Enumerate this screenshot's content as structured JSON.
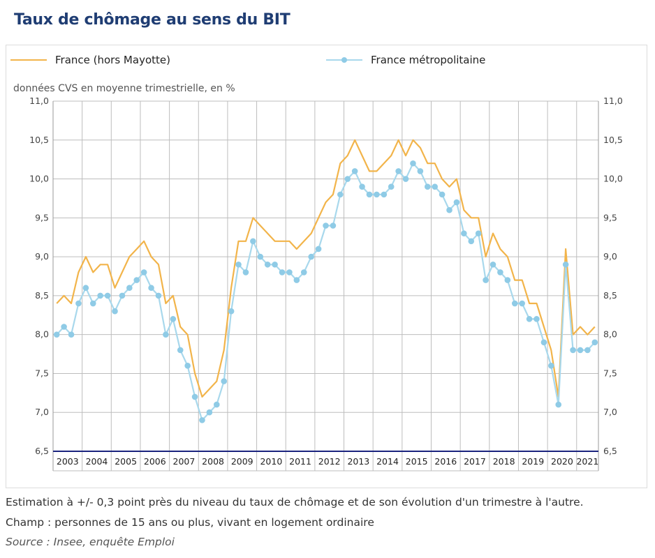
{
  "page_title": "Taux de chômage au sens du BIT",
  "colors": {
    "france": "#f2b44a",
    "metro_line": "#a8d8ec",
    "metro_point": "#8fcbe6",
    "baseline": "#1a237e",
    "grid": "#bdbdbd"
  },
  "legend": {
    "france_label": "France (hors Mayotte)",
    "metro_label": "France métropolitaine"
  },
  "units_note": "données CVS en moyenne trimestrielle, en %",
  "footnotes": {
    "estimation": "Estimation à +/- 0,3 point près du niveau du taux de chômage et de son évolution d'un trimestre à l'autre.",
    "champ": "Champ : personnes de 15 ans ou plus, vivant en logement ordinaire",
    "source": "Source : Insee, enquête Emploi"
  },
  "chart_data": {
    "type": "line",
    "title": "Taux de chômage au sens du BIT",
    "ylabel": "données CVS en moyenne trimestrielle, en %",
    "ylim": [
      6.5,
      11.0
    ],
    "yticks": [
      "6,5",
      "7,0",
      "7,5",
      "8,0",
      "8,5",
      "9,0",
      "9,5",
      "10,0",
      "10,5",
      "11,0"
    ],
    "ytick_values": [
      6.5,
      7.0,
      7.5,
      8.0,
      8.5,
      9.0,
      9.5,
      10.0,
      10.5,
      11.0
    ],
    "x_start": "2003 T1",
    "quarters_per_year": 4,
    "years": [
      "2003",
      "2004",
      "2005",
      "2006",
      "2007",
      "2008",
      "2009",
      "2010",
      "2011",
      "2012",
      "2013",
      "2014",
      "2015",
      "2016",
      "2017",
      "2018",
      "2019",
      "2020",
      "2021"
    ],
    "last_year_quarters": 3,
    "series": [
      {
        "name": "France (hors Mayotte)",
        "values": [
          8.4,
          8.5,
          8.4,
          8.8,
          9.0,
          8.8,
          8.9,
          8.9,
          8.6,
          8.8,
          9.0,
          9.1,
          9.2,
          9.0,
          8.9,
          8.4,
          8.5,
          8.1,
          8.0,
          7.5,
          7.2,
          7.3,
          7.4,
          7.8,
          8.6,
          9.2,
          9.2,
          9.5,
          9.4,
          9.3,
          9.2,
          9.2,
          9.2,
          9.1,
          9.2,
          9.3,
          9.5,
          9.7,
          9.8,
          10.2,
          10.3,
          10.5,
          10.3,
          10.1,
          10.1,
          10.2,
          10.3,
          10.5,
          10.3,
          10.5,
          10.4,
          10.2,
          10.2,
          10.0,
          9.9,
          10.0,
          9.6,
          9.5,
          9.5,
          9.0,
          9.3,
          9.1,
          9.0,
          8.7,
          8.7,
          8.4,
          8.4,
          8.1,
          7.8,
          7.2,
          9.1,
          8.0,
          8.1,
          8.0,
          8.1
        ]
      },
      {
        "name": "France métropolitaine",
        "values": [
          8.0,
          8.1,
          8.0,
          8.4,
          8.6,
          8.4,
          8.5,
          8.5,
          8.3,
          8.5,
          8.6,
          8.7,
          8.8,
          8.6,
          8.5,
          8.0,
          8.2,
          7.8,
          7.6,
          7.2,
          6.9,
          7.0,
          7.1,
          7.4,
          8.3,
          8.9,
          8.8,
          9.2,
          9.0,
          8.9,
          8.9,
          8.8,
          8.8,
          8.7,
          8.8,
          9.0,
          9.1,
          9.4,
          9.4,
          9.8,
          10.0,
          10.1,
          9.9,
          9.8,
          9.8,
          9.8,
          9.9,
          10.1,
          10.0,
          10.2,
          10.1,
          9.9,
          9.9,
          9.8,
          9.6,
          9.7,
          9.3,
          9.2,
          9.3,
          8.7,
          8.9,
          8.8,
          8.7,
          8.4,
          8.4,
          8.2,
          8.2,
          7.9,
          7.6,
          7.1,
          8.9,
          7.8,
          7.8,
          7.8,
          7.9
        ]
      }
    ]
  }
}
